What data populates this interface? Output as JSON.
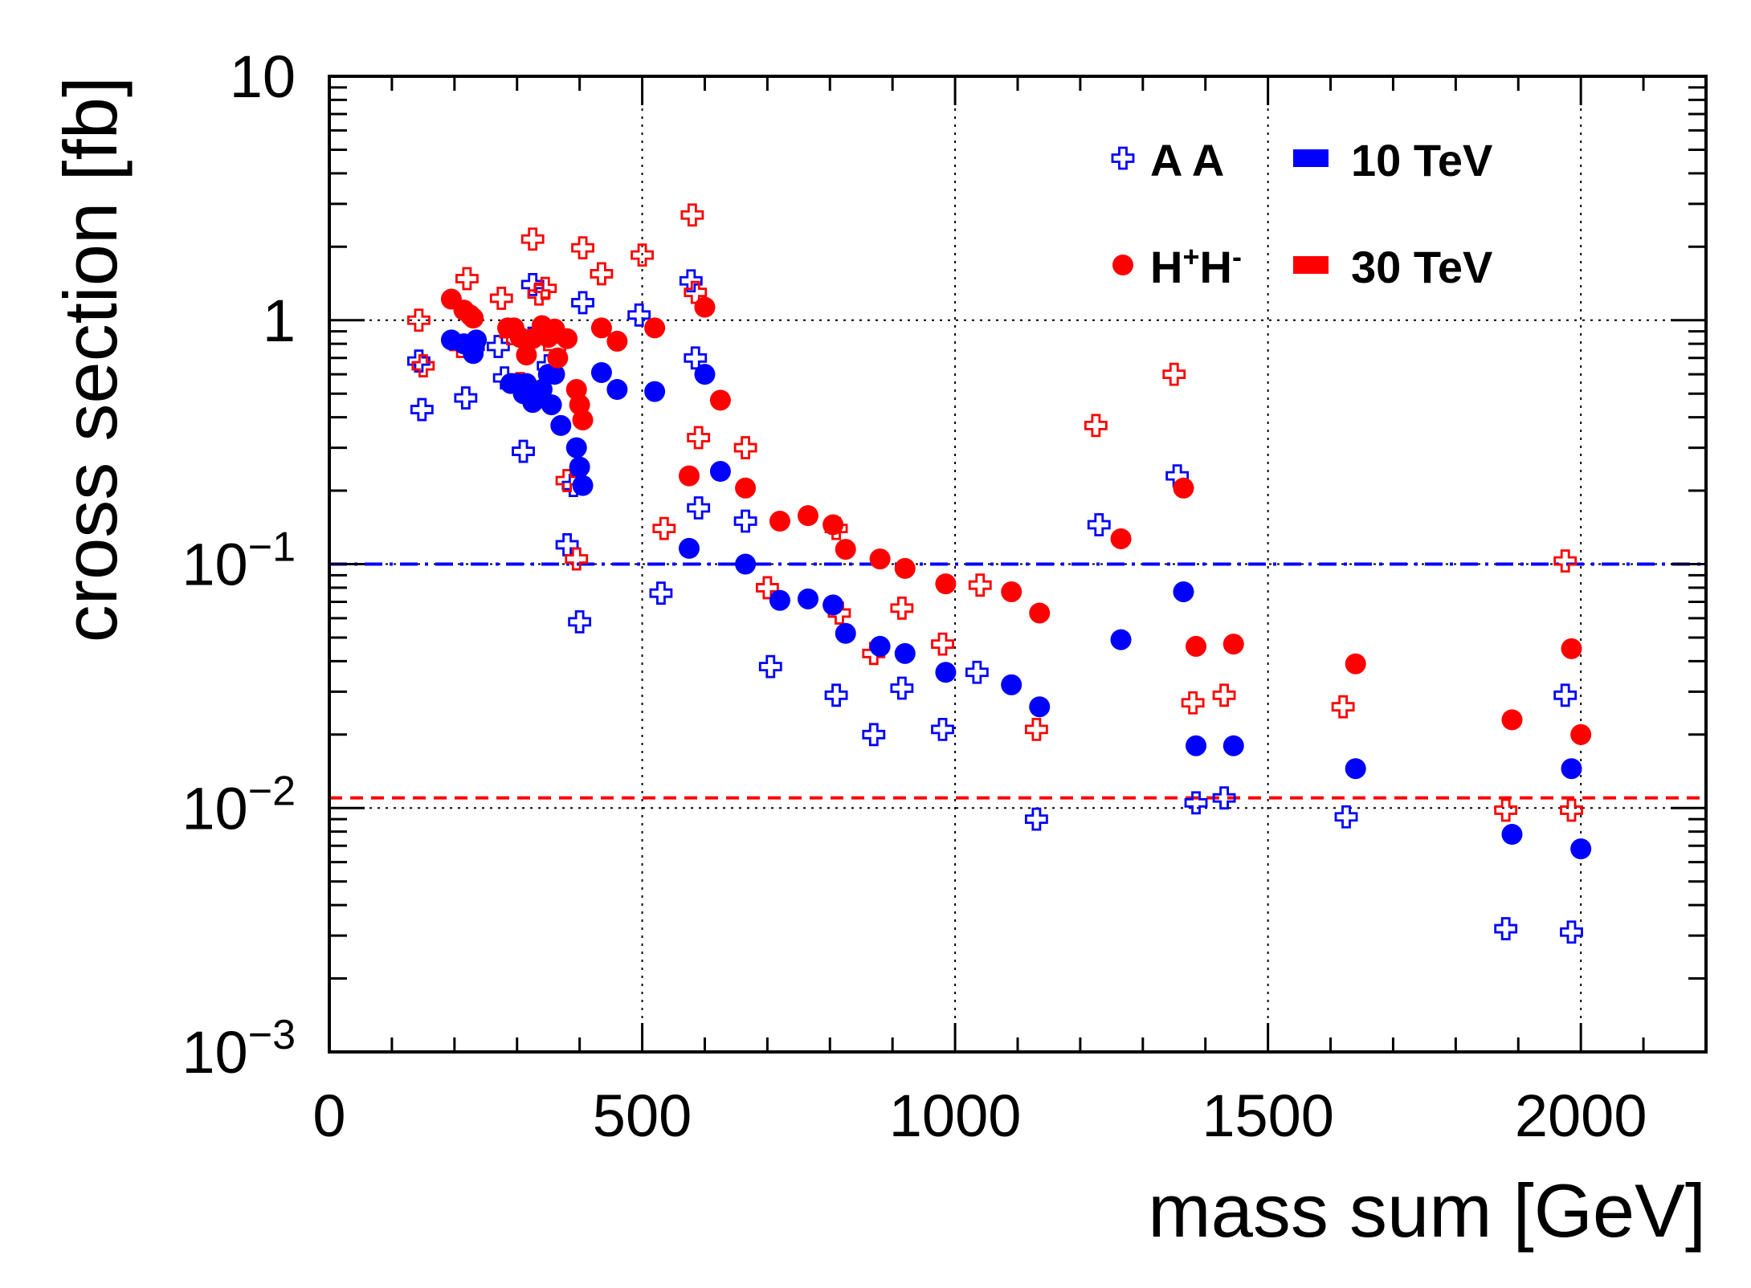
{
  "chart_data": {
    "type": "scatter",
    "title": "",
    "xlabel": "mass sum [GeV]",
    "ylabel": "cross section [fb]",
    "xlim": [
      0,
      2200
    ],
    "ylim": [
      0.001,
      10
    ],
    "yscale": "log",
    "grid": true,
    "x_ticks": [
      {
        "value": 0,
        "label": "0"
      },
      {
        "value": 500,
        "label": "500"
      },
      {
        "value": 1000,
        "label": "1000"
      },
      {
        "value": 1500,
        "label": "1500"
      },
      {
        "value": 2000,
        "label": "2000"
      }
    ],
    "y_ticks": [
      {
        "value": 0.001,
        "base": "10",
        "exp": "−3"
      },
      {
        "value": 0.01,
        "base": "10",
        "exp": "−2"
      },
      {
        "value": 0.1,
        "base": "10",
        "exp": "−1"
      },
      {
        "value": 1,
        "base": "1",
        "exp": ""
      },
      {
        "value": 10,
        "base": "10",
        "exp": ""
      }
    ],
    "reference_lines": [
      {
        "name": "10 TeV threshold",
        "y": 0.1,
        "color": "#0000ff",
        "style": "dash-dot"
      },
      {
        "name": "30 TeV threshold",
        "y": 0.011,
        "color": "#ff0000",
        "style": "dashed"
      }
    ],
    "legend": {
      "position": "top-right",
      "entries": [
        {
          "label_parts": [
            {
              "t": "A A",
              "sup": false
            }
          ],
          "marker": "cross-open",
          "color": "#0000ff"
        },
        {
          "label_parts": [
            {
              "t": "10 TeV",
              "sup": false
            }
          ],
          "marker": "box",
          "color": "#0000ff"
        },
        {
          "label_parts": [
            {
              "t": "H",
              "sup": false
            },
            {
              "t": "+",
              "sup": true
            },
            {
              "t": "H",
              "sup": false
            },
            {
              "t": "-",
              "sup": true
            }
          ],
          "marker": "circle",
          "color": "#ff0000"
        },
        {
          "label_parts": [
            {
              "t": "30 TeV",
              "sup": false
            }
          ],
          "marker": "box",
          "color": "#ff0000"
        }
      ]
    },
    "series": [
      {
        "name": "A A, 10 TeV",
        "marker": "cross-open",
        "color": "#0000ff",
        "points": [
          [
            143,
            0.68
          ],
          [
            148,
            0.43
          ],
          [
            218,
            0.48
          ],
          [
            230,
            0.78
          ],
          [
            270,
            0.78
          ],
          [
            280,
            0.58
          ],
          [
            310,
            0.29
          ],
          [
            325,
            1.4
          ],
          [
            335,
            0.9
          ],
          [
            350,
            0.65
          ],
          [
            380,
            0.12
          ],
          [
            390,
            0.21
          ],
          [
            400,
            0.058
          ],
          [
            405,
            1.18
          ],
          [
            495,
            1.05
          ],
          [
            530,
            0.076
          ],
          [
            578,
            1.45
          ],
          [
            585,
            0.7
          ],
          [
            590,
            0.17
          ],
          [
            665,
            0.15
          ],
          [
            705,
            0.038
          ],
          [
            810,
            0.029
          ],
          [
            870,
            0.02
          ],
          [
            915,
            0.031
          ],
          [
            980,
            0.021
          ],
          [
            1035,
            0.036
          ],
          [
            1130,
            0.009
          ],
          [
            1230,
            0.145
          ],
          [
            1355,
            0.23
          ],
          [
            1385,
            0.0105
          ],
          [
            1430,
            0.011
          ],
          [
            1625,
            0.0092
          ],
          [
            1880,
            0.0032
          ],
          [
            1975,
            0.029
          ],
          [
            1985,
            0.0031
          ]
        ]
      },
      {
        "name": "A A, 30 TeV",
        "marker": "cross-open",
        "color": "#ff0000",
        "points": [
          [
            143,
            1.0
          ],
          [
            150,
            0.65
          ],
          [
            210,
            0.78
          ],
          [
            220,
            1.48
          ],
          [
            275,
            1.23
          ],
          [
            290,
            0.88
          ],
          [
            305,
            0.55
          ],
          [
            325,
            2.15
          ],
          [
            335,
            1.28
          ],
          [
            345,
            1.35
          ],
          [
            360,
            0.78
          ],
          [
            380,
            0.22
          ],
          [
            395,
            0.105
          ],
          [
            405,
            1.98
          ],
          [
            435,
            1.55
          ],
          [
            500,
            1.85
          ],
          [
            535,
            0.14
          ],
          [
            580,
            2.7
          ],
          [
            585,
            1.3
          ],
          [
            590,
            0.33
          ],
          [
            665,
            0.3
          ],
          [
            700,
            0.08
          ],
          [
            810,
            0.14
          ],
          [
            815,
            0.063
          ],
          [
            870,
            0.043
          ],
          [
            915,
            0.066
          ],
          [
            980,
            0.047
          ],
          [
            1040,
            0.082
          ],
          [
            1130,
            0.021
          ],
          [
            1225,
            0.37
          ],
          [
            1350,
            0.6
          ],
          [
            1380,
            0.027
          ],
          [
            1430,
            0.029
          ],
          [
            1620,
            0.026
          ],
          [
            1880,
            0.0098
          ],
          [
            1975,
            0.103
          ],
          [
            1985,
            0.0098
          ]
        ]
      },
      {
        "name": "H+H-, 10 TeV",
        "marker": "circle",
        "color": "#0000ff",
        "points": [
          [
            195,
            0.83
          ],
          [
            215,
            0.8
          ],
          [
            230,
            0.73
          ],
          [
            235,
            0.83
          ],
          [
            290,
            0.55
          ],
          [
            300,
            0.55
          ],
          [
            310,
            0.5
          ],
          [
            315,
            0.55
          ],
          [
            325,
            0.46
          ],
          [
            340,
            0.52
          ],
          [
            350,
            0.6
          ],
          [
            355,
            0.45
          ],
          [
            360,
            0.6
          ],
          [
            370,
            0.37
          ],
          [
            395,
            0.3
          ],
          [
            400,
            0.25
          ],
          [
            405,
            0.21
          ],
          [
            435,
            0.61
          ],
          [
            460,
            0.52
          ],
          [
            520,
            0.51
          ],
          [
            575,
            0.116
          ],
          [
            600,
            0.6
          ],
          [
            625,
            0.24
          ],
          [
            665,
            0.1
          ],
          [
            720,
            0.071
          ],
          [
            765,
            0.072
          ],
          [
            805,
            0.068
          ],
          [
            825,
            0.052
          ],
          [
            880,
            0.046
          ],
          [
            920,
            0.043
          ],
          [
            985,
            0.036
          ],
          [
            1090,
            0.032
          ],
          [
            1135,
            0.026
          ],
          [
            1265,
            0.049
          ],
          [
            1365,
            0.077
          ],
          [
            1385,
            0.018
          ],
          [
            1445,
            0.018
          ],
          [
            1640,
            0.0145
          ],
          [
            1890,
            0.0078
          ],
          [
            1985,
            0.0145
          ],
          [
            2000,
            0.0068
          ]
        ]
      },
      {
        "name": "H+H-, 30 TeV",
        "marker": "circle",
        "color": "#ff0000",
        "points": [
          [
            195,
            1.22
          ],
          [
            215,
            1.1
          ],
          [
            225,
            1.05
          ],
          [
            230,
            1.02
          ],
          [
            285,
            0.93
          ],
          [
            295,
            0.93
          ],
          [
            305,
            0.85
          ],
          [
            315,
            0.72
          ],
          [
            325,
            0.84
          ],
          [
            340,
            0.95
          ],
          [
            345,
            0.9
          ],
          [
            350,
            0.85
          ],
          [
            360,
            0.92
          ],
          [
            365,
            0.7
          ],
          [
            380,
            0.84
          ],
          [
            395,
            0.52
          ],
          [
            400,
            0.45
          ],
          [
            405,
            0.39
          ],
          [
            435,
            0.93
          ],
          [
            460,
            0.82
          ],
          [
            520,
            0.93
          ],
          [
            575,
            0.23
          ],
          [
            600,
            1.13
          ],
          [
            625,
            0.47
          ],
          [
            665,
            0.205
          ],
          [
            720,
            0.15
          ],
          [
            765,
            0.158
          ],
          [
            805,
            0.145
          ],
          [
            825,
            0.115
          ],
          [
            880,
            0.105
          ],
          [
            920,
            0.096
          ],
          [
            985,
            0.083
          ],
          [
            1090,
            0.077
          ],
          [
            1135,
            0.063
          ],
          [
            1265,
            0.127
          ],
          [
            1365,
            0.205
          ],
          [
            1385,
            0.046
          ],
          [
            1445,
            0.047
          ],
          [
            1640,
            0.039
          ],
          [
            1890,
            0.023
          ],
          [
            1985,
            0.045
          ],
          [
            2000,
            0.02
          ]
        ]
      }
    ]
  }
}
